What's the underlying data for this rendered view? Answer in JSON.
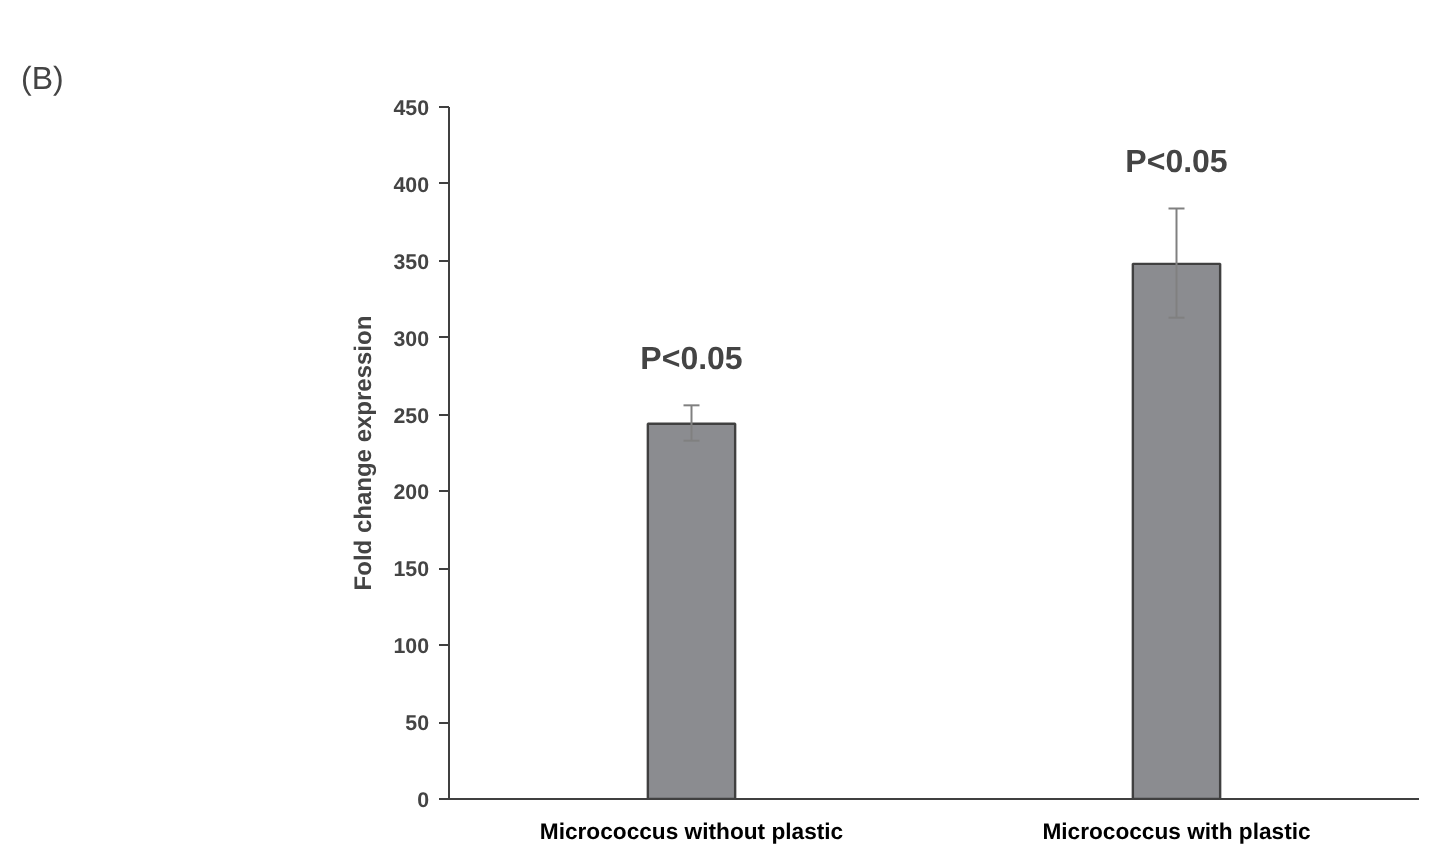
{
  "chart_data": {
    "type": "bar",
    "ylabel": "Fold change expression",
    "categories": [
      "Micrococcus without plastic",
      "Micrococcus with plastic"
    ],
    "values": [
      244,
      348
    ],
    "color": "#8b8c90",
    "errors": [
      [
        233,
        256
      ],
      [
        313,
        384
      ]
    ],
    "ylim": [
      0,
      450
    ],
    "yticks": [
      0,
      50,
      100,
      150,
      200,
      250,
      300,
      350,
      400,
      450
    ],
    "grid": false,
    "annotations": [
      "(B)",
      "P<0.05",
      "P<0.05"
    ]
  }
}
